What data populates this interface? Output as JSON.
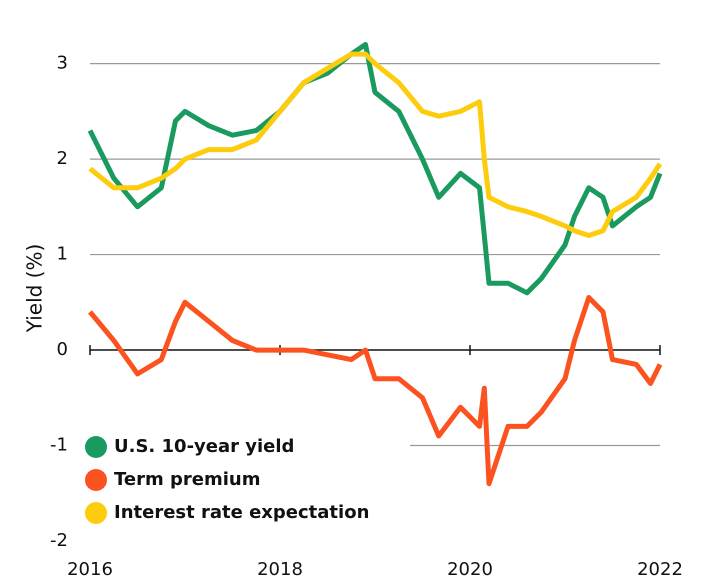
{
  "chart_data": {
    "type": "line",
    "y_label": "Yield (%)",
    "x": [
      2016.0,
      2016.25,
      2016.5,
      2016.75,
      2016.9,
      2017.0,
      2017.25,
      2017.5,
      2017.75,
      2018.0,
      2018.25,
      2018.5,
      2018.75,
      2018.9,
      2019.0,
      2019.25,
      2019.5,
      2019.67,
      2019.9,
      2020.1,
      2020.15,
      2020.2,
      2020.4,
      2020.6,
      2020.75,
      2021.0,
      2021.1,
      2021.25,
      2021.4,
      2021.5,
      2021.75,
      2021.9,
      2022.0
    ],
    "series": [
      {
        "name": "U.S. 10-year yield",
        "color": "#1a9a5e",
        "values": [
          2.3,
          1.8,
          1.5,
          1.7,
          2.4,
          2.5,
          2.35,
          2.25,
          2.3,
          2.5,
          2.8,
          2.9,
          3.1,
          3.2,
          2.7,
          2.5,
          2.0,
          1.6,
          1.85,
          1.7,
          1.2,
          0.7,
          0.7,
          0.6,
          0.75,
          1.1,
          1.4,
          1.7,
          1.6,
          1.3,
          1.5,
          1.6,
          1.85
        ]
      },
      {
        "name": "Term premium",
        "color": "#fb5220",
        "values": [
          0.4,
          0.1,
          -0.25,
          -0.1,
          0.3,
          0.5,
          0.3,
          0.1,
          0.0,
          0.0,
          0.0,
          -0.05,
          -0.1,
          0.0,
          -0.3,
          -0.3,
          -0.5,
          -0.9,
          -0.6,
          -0.8,
          -0.4,
          -1.4,
          -0.8,
          -0.8,
          -0.65,
          -0.3,
          0.1,
          0.55,
          0.4,
          -0.1,
          -0.15,
          -0.35,
          -0.15
        ]
      },
      {
        "name": "Interest rate expectation",
        "color": "#fdcc0d",
        "values": [
          1.9,
          1.7,
          1.7,
          1.8,
          1.9,
          2.0,
          2.1,
          2.1,
          2.2,
          2.5,
          2.8,
          2.95,
          3.1,
          3.1,
          3.0,
          2.8,
          2.5,
          2.45,
          2.5,
          2.6,
          2.0,
          1.6,
          1.5,
          1.45,
          1.4,
          1.3,
          1.25,
          1.2,
          1.25,
          1.45,
          1.6,
          1.8,
          1.95
        ]
      }
    ],
    "xlim": [
      2016,
      2022
    ],
    "xticks": [
      2016,
      2018,
      2020,
      2022
    ],
    "ylim": [
      -2,
      3.3
    ],
    "yticks": [
      -2,
      -1,
      0,
      1,
      2,
      3
    ],
    "grid": true,
    "legend": "lower left"
  }
}
